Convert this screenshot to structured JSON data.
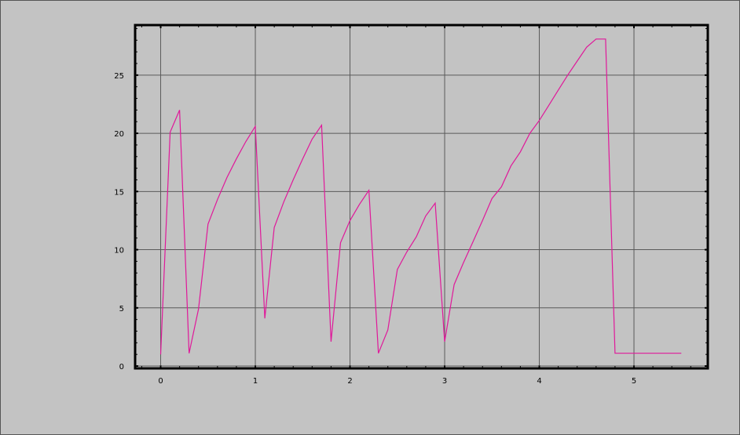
{
  "chart_data": {
    "type": "line",
    "title": "",
    "xlabel": "",
    "ylabel": "",
    "xlim": [
      -0.27,
      5.78
    ],
    "ylim": [
      -0.2,
      29.3
    ],
    "grid": true,
    "x_ticks": [
      "0",
      "1",
      "2",
      "3",
      "4",
      "5"
    ],
    "y_ticks": [
      "0",
      "5",
      "10",
      "15",
      "20",
      "25"
    ],
    "series": [
      {
        "color": "#e0189a",
        "x": [
          0,
          0.1,
          0.2,
          0.3,
          0.4,
          0.5,
          0.6,
          0.7,
          0.8,
          0.9,
          1.0,
          1.1,
          1.2,
          1.3,
          1.4,
          1.5,
          1.6,
          1.7,
          1.8,
          1.9,
          2.0,
          2.1,
          2.2,
          2.3,
          2.4,
          2.5,
          2.6,
          2.7,
          2.8,
          2.9,
          3.0,
          3.1,
          3.2,
          3.3,
          3.4,
          3.5,
          3.6,
          3.7,
          3.8,
          3.9,
          4.0,
          4.1,
          4.2,
          4.3,
          4.4,
          4.5,
          4.6,
          4.7,
          4.8,
          4.9,
          5.0,
          5.1,
          5.2,
          5.3,
          5.4,
          5.5
        ],
        "y": [
          1.0,
          20.1,
          22.0,
          1.1,
          4.9,
          12.2,
          14.3,
          16.2,
          17.8,
          19.3,
          20.6,
          4.1,
          11.9,
          14.1,
          16.0,
          17.8,
          19.5,
          20.7,
          2.1,
          10.6,
          12.5,
          13.9,
          15.1,
          1.1,
          3.1,
          8.3,
          9.8,
          11.1,
          12.9,
          14.0,
          2.1,
          7.0,
          8.9,
          10.7,
          12.5,
          14.4,
          15.4,
          17.2,
          18.4,
          20.0,
          21.1,
          22.4,
          23.7,
          25.0,
          26.2,
          27.4,
          28.1,
          28.1,
          1.1,
          1.1,
          1.1,
          1.1,
          1.1,
          1.1,
          1.1,
          1.1
        ]
      }
    ]
  }
}
